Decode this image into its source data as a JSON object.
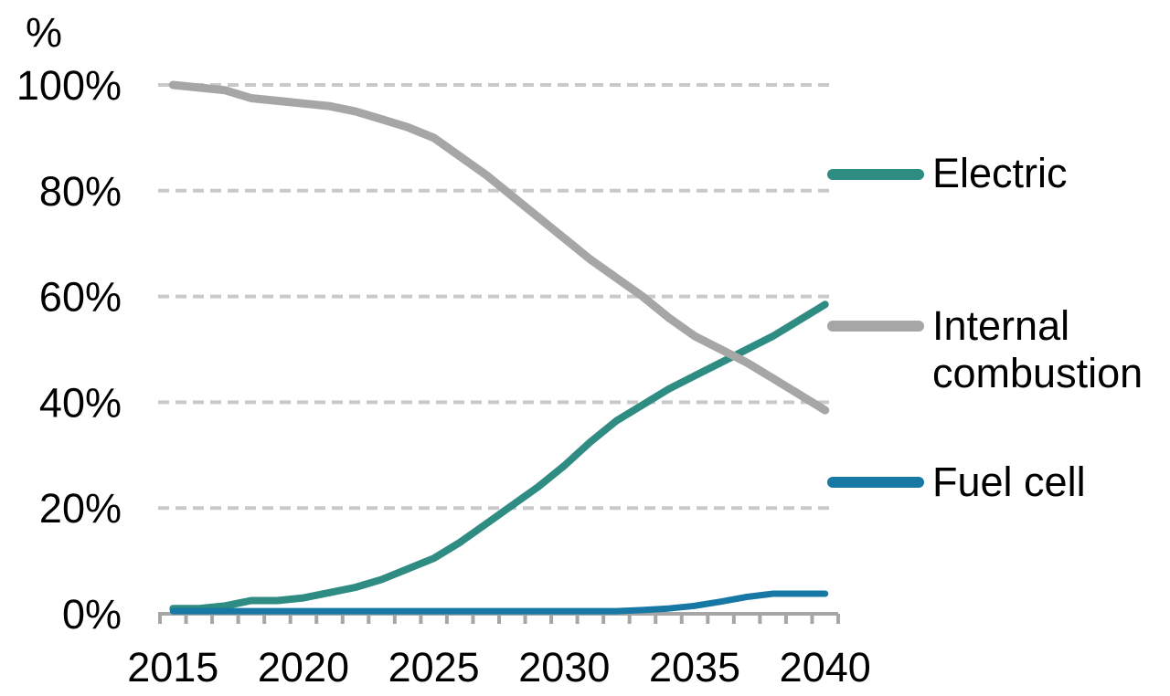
{
  "chart_data": {
    "type": "line",
    "y_axis_title": "%",
    "x": [
      2015,
      2016,
      2017,
      2018,
      2019,
      2020,
      2021,
      2022,
      2023,
      2024,
      2025,
      2026,
      2027,
      2028,
      2029,
      2030,
      2031,
      2032,
      2033,
      2034,
      2035,
      2036,
      2037,
      2038,
      2039,
      2040
    ],
    "x_tick_labels": [
      "2015",
      "2020",
      "2025",
      "2030",
      "2035",
      "2040"
    ],
    "y_tick_labels": [
      "100%",
      "80%",
      "60%",
      "40%",
      "20%",
      "0%"
    ],
    "y_tick_values": [
      100,
      80,
      60,
      40,
      20,
      0
    ],
    "gridline_values": [
      100,
      80,
      60,
      40,
      20
    ],
    "ylim": [
      0,
      100
    ],
    "grid": "dashed-horizontal",
    "legend_position": "right",
    "axis_color": "#A6A6A6",
    "gridline_color": "#C9C9C9",
    "text_color": "#000000",
    "series": [
      {
        "name": "Electric",
        "color": "#2E8C82",
        "stroke_width": 8,
        "values": [
          1,
          1,
          1.5,
          2.5,
          2.5,
          3,
          4,
          5,
          6.5,
          8.5,
          10.5,
          13.5,
          17,
          20.5,
          24,
          28,
          32.5,
          36.5,
          39.5,
          42.5,
          45,
          47.5,
          50,
          52.5,
          55.5,
          58.5
        ]
      },
      {
        "name": "Internal combustion",
        "color": "#A6A6A6",
        "stroke_width": 9,
        "values": [
          100,
          99.5,
          99,
          97.5,
          97,
          96.5,
          96,
          95,
          93.5,
          92,
          90,
          86.5,
          83,
          79,
          75,
          71,
          67,
          63.5,
          60,
          56,
          52.5,
          50,
          47.5,
          44.5,
          41.5,
          38.5
        ]
      },
      {
        "name": "Fuel cell",
        "color": "#1778A5",
        "stroke_width": 7,
        "values": [
          0.5,
          0.5,
          0.5,
          0.5,
          0.5,
          0.5,
          0.5,
          0.5,
          0.5,
          0.5,
          0.5,
          0.5,
          0.5,
          0.5,
          0.5,
          0.5,
          0.5,
          0.5,
          0.7,
          1,
          1.5,
          2.3,
          3.2,
          3.8,
          3.8,
          3.8
        ]
      }
    ]
  }
}
